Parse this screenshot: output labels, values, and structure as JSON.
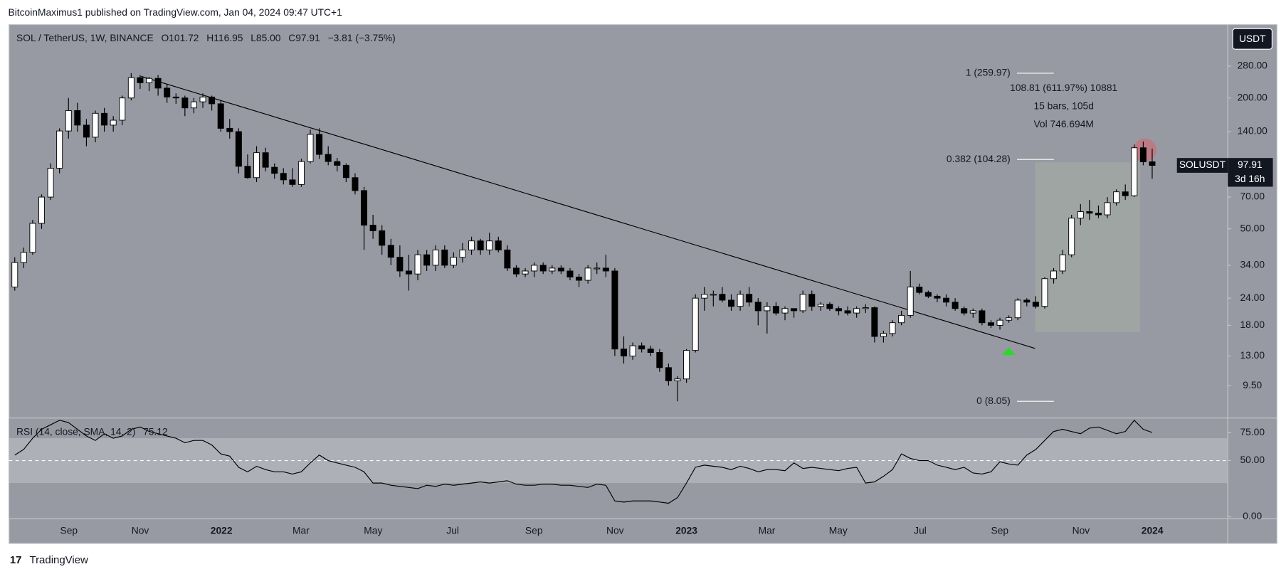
{
  "header": "BitcoinMaximus1 published on TradingView.com, Jan 04, 2024 09:47 UTC+1",
  "footer": "TradingView",
  "chart_data": {
    "type": "candlestick",
    "symbol": "SOL / TetherUS, 1W, BINANCE",
    "legend": {
      "O": "101.72",
      "H": "116.95",
      "L": "85.00",
      "C": "97.91",
      "change": "−3.81 (−3.75%)"
    },
    "currency_button": "USDT",
    "price_label": {
      "name": "SOLUSDT",
      "price": "97.91",
      "countdown": "3d 16h"
    },
    "log_scale": true,
    "ylim": [
      6.74,
      435
    ],
    "yticks": [
      {
        "value": 280,
        "label": "280.00"
      },
      {
        "value": 200,
        "label": "200.00"
      },
      {
        "value": 140,
        "label": "140.00"
      },
      {
        "value": 70,
        "label": "70.00"
      },
      {
        "value": 50,
        "label": "50.00"
      },
      {
        "value": 34,
        "label": "34.00"
      },
      {
        "value": 24,
        "label": "24.00"
      },
      {
        "value": 18,
        "label": "18.00"
      },
      {
        "value": 13,
        "label": "13.00"
      },
      {
        "value": 9.5,
        "label": "9.50"
      }
    ],
    "xtick_labels": [
      "Sep",
      "Nov",
      "2022",
      "Mar",
      "May",
      "Jul",
      "Sep",
      "Nov",
      "2023",
      "Mar",
      "May",
      "Jul",
      "Sep",
      "Nov",
      "2024"
    ],
    "up_color": "#ffffff",
    "down_color": "#000000",
    "candles": [
      [
        27,
        37,
        26,
        35
      ],
      [
        35,
        41,
        33,
        39
      ],
      [
        39,
        55,
        38,
        53
      ],
      [
        53,
        72,
        50,
        70
      ],
      [
        70,
        100,
        68,
        95
      ],
      [
        95,
        145,
        90,
        141
      ],
      [
        141,
        200,
        130,
        175
      ],
      [
        175,
        190,
        140,
        150
      ],
      [
        150,
        160,
        120,
        132
      ],
      [
        132,
        175,
        125,
        170
      ],
      [
        170,
        180,
        140,
        150
      ],
      [
        150,
        165,
        140,
        158
      ],
      [
        158,
        205,
        150,
        200
      ],
      [
        200,
        259.97,
        195,
        248
      ],
      [
        248,
        255,
        220,
        235
      ],
      [
        235,
        250,
        215,
        246
      ],
      [
        246,
        255,
        205,
        222
      ],
      [
        222,
        232,
        190,
        202
      ],
      [
        202,
        210,
        188,
        200
      ],
      [
        200,
        205,
        165,
        180
      ],
      [
        180,
        200,
        170,
        192
      ],
      [
        192,
        210,
        180,
        202
      ],
      [
        202,
        205,
        175,
        188
      ],
      [
        188,
        195,
        140,
        145
      ],
      [
        145,
        160,
        130,
        140
      ],
      [
        140,
        145,
        90,
        97
      ],
      [
        97,
        110,
        85,
        86
      ],
      [
        86,
        120,
        82,
        112
      ],
      [
        112,
        118,
        92,
        96
      ],
      [
        96,
        100,
        85,
        90
      ],
      [
        90,
        95,
        80,
        84
      ],
      [
        84,
        95,
        78,
        80
      ],
      [
        80,
        105,
        78,
        102
      ],
      [
        102,
        143,
        100,
        136
      ],
      [
        136,
        145,
        105,
        110
      ],
      [
        110,
        120,
        98,
        102
      ],
      [
        102,
        106,
        92,
        98
      ],
      [
        98,
        100,
        82,
        86
      ],
      [
        86,
        90,
        72,
        75
      ],
      [
        75,
        78,
        40,
        52
      ],
      [
        52,
        58,
        45,
        49
      ],
      [
        49,
        52,
        38,
        42
      ],
      [
        42,
        45,
        34,
        37
      ],
      [
        37,
        42,
        30,
        32
      ],
      [
        32,
        38,
        26,
        31
      ],
      [
        31,
        40,
        29,
        38
      ],
      [
        38,
        40,
        32,
        34
      ],
      [
        34,
        42,
        32,
        40
      ],
      [
        40,
        42,
        33,
        34
      ],
      [
        34,
        39,
        33,
        37
      ],
      [
        37,
        43,
        35,
        40
      ],
      [
        40,
        46,
        38,
        44
      ],
      [
        44,
        45,
        38,
        40
      ],
      [
        40,
        48,
        38,
        44
      ],
      [
        44,
        46,
        39,
        40
      ],
      [
        40,
        42,
        32,
        33
      ],
      [
        33,
        34,
        30,
        31
      ],
      [
        31,
        33,
        30,
        32
      ],
      [
        32,
        35,
        30,
        34
      ],
      [
        34,
        35,
        31,
        32
      ],
      [
        32,
        34,
        31,
        33
      ],
      [
        33,
        34,
        31,
        32
      ],
      [
        32,
        33,
        29,
        30
      ],
      [
        30,
        31,
        27,
        29
      ],
      [
        29,
        34,
        28,
        33
      ],
      [
        33,
        35,
        31,
        33
      ],
      [
        33,
        38,
        30,
        32
      ],
      [
        32,
        33,
        13,
        14
      ],
      [
        14,
        16,
        12,
        13
      ],
      [
        13,
        15,
        12.5,
        14.5
      ],
      [
        14.5,
        15,
        13.5,
        14
      ],
      [
        14,
        14.5,
        13,
        13.5
      ],
      [
        13.5,
        14,
        11,
        11.5
      ],
      [
        11.5,
        12,
        9.5,
        10
      ],
      [
        10,
        10.5,
        8.05,
        10.2
      ],
      [
        10.2,
        14,
        9.8,
        13.8
      ],
      [
        13.8,
        25,
        13.5,
        24
      ],
      [
        24,
        27,
        21,
        25
      ],
      [
        25,
        26,
        22,
        25
      ],
      [
        25,
        27,
        23,
        23.5
      ],
      [
        23.5,
        25,
        21,
        22
      ],
      [
        22,
        26,
        21,
        25
      ],
      [
        25,
        27,
        22,
        23
      ],
      [
        23,
        24,
        18,
        21
      ],
      [
        21,
        23,
        16.5,
        22
      ],
      [
        22,
        23,
        20,
        20.5
      ],
      [
        20.5,
        22,
        19,
        21.5
      ],
      [
        21.5,
        21.5,
        19.5,
        21
      ],
      [
        21,
        26,
        20.5,
        25
      ],
      [
        25,
        26,
        21,
        22
      ],
      [
        22,
        23,
        21,
        22.5
      ],
      [
        22.5,
        23,
        21,
        21.5
      ],
      [
        21.5,
        22,
        20,
        21
      ],
      [
        21,
        22,
        20,
        20.5
      ],
      [
        20.5,
        22,
        19.5,
        21.5
      ],
      [
        21.5,
        22.5,
        20.5,
        21.7
      ],
      [
        21.7,
        22,
        15,
        16
      ],
      [
        16,
        17,
        15,
        16.5
      ],
      [
        16.5,
        19,
        16,
        18.5
      ],
      [
        18.5,
        21,
        18,
        20
      ],
      [
        20,
        32,
        19.5,
        27
      ],
      [
        27,
        28,
        25,
        25.5
      ],
      [
        25.5,
        26,
        24,
        24.5
      ],
      [
        24.5,
        25,
        23,
        24
      ],
      [
        24,
        25,
        22,
        23
      ],
      [
        23,
        24,
        21,
        21.5
      ],
      [
        21.5,
        22,
        20,
        20.5
      ],
      [
        20.5,
        21.5,
        19.5,
        21
      ],
      [
        21,
        21.5,
        18,
        18.5
      ],
      [
        18.5,
        19,
        17.5,
        18
      ],
      [
        18,
        19.5,
        17.2,
        19
      ],
      [
        19,
        20,
        18.5,
        19.5
      ],
      [
        19.5,
        24,
        19,
        23.5
      ],
      [
        23.5,
        24,
        22,
        23
      ],
      [
        23,
        24.5,
        21.5,
        22
      ],
      [
        22,
        30,
        21.5,
        29.5
      ],
      [
        29.5,
        33,
        28,
        32
      ],
      [
        32,
        40,
        31,
        38
      ],
      [
        38,
        58,
        37,
        56
      ],
      [
        56,
        65,
        52,
        60
      ],
      [
        60,
        68,
        55,
        59
      ],
      [
        59,
        64,
        56,
        58
      ],
      [
        58,
        70,
        56,
        66
      ],
      [
        66,
        76,
        64,
        74
      ],
      [
        74,
        80,
        68,
        71
      ],
      [
        71,
        122,
        70,
        118
      ],
      [
        118,
        126,
        98,
        101.72
      ],
      [
        101.72,
        116.95,
        85,
        97.91
      ]
    ],
    "fib_levels": [
      {
        "price": 259.97,
        "label": "1 (259.97)"
      },
      {
        "price": 104.28,
        "label": "0.382 (104.28)"
      },
      {
        "price": 8.05,
        "label": "0 (8.05)"
      }
    ],
    "measure": [
      "108.81 (611.97%) 10881",
      "15 bars, 105d",
      "Vol 746.694M"
    ],
    "rsi": {
      "title": "RSI (14, close, SMA, 14, 2)",
      "last": "75.12",
      "ylim": [
        -2,
        88
      ],
      "yticks": [
        {
          "value": 75,
          "label": "75.00"
        },
        {
          "value": 50,
          "label": "50.00"
        },
        {
          "value": 0,
          "label": "0.00"
        }
      ],
      "band": [
        30,
        70
      ],
      "color": "#000000",
      "values": [
        55,
        60,
        70,
        78,
        82,
        86,
        84,
        78,
        72,
        68,
        74,
        70,
        72,
        78,
        80,
        76,
        74,
        72,
        70,
        66,
        68,
        68,
        64,
        56,
        54,
        44,
        40,
        45,
        42,
        40,
        40,
        38,
        40,
        48,
        55,
        50,
        48,
        46,
        44,
        40,
        30,
        30,
        28,
        27,
        26,
        25,
        28,
        27,
        29,
        28,
        29,
        30,
        31,
        30,
        31,
        32,
        29,
        28,
        28,
        29,
        29,
        28,
        28,
        27,
        26,
        29,
        28,
        14,
        13,
        14,
        14,
        14,
        13,
        12,
        17,
        30,
        44,
        46,
        45,
        44,
        42,
        45,
        43,
        40,
        42,
        42,
        41,
        48,
        43,
        44,
        43,
        42,
        41,
        43,
        44,
        30,
        31,
        36,
        42,
        56,
        52,
        50,
        50,
        46,
        44,
        42,
        44,
        39,
        38,
        40,
        49,
        47,
        46,
        55,
        60,
        68,
        76,
        78,
        76,
        74,
        79,
        80,
        77,
        74,
        76,
        86,
        78,
        75.12
      ]
    }
  }
}
